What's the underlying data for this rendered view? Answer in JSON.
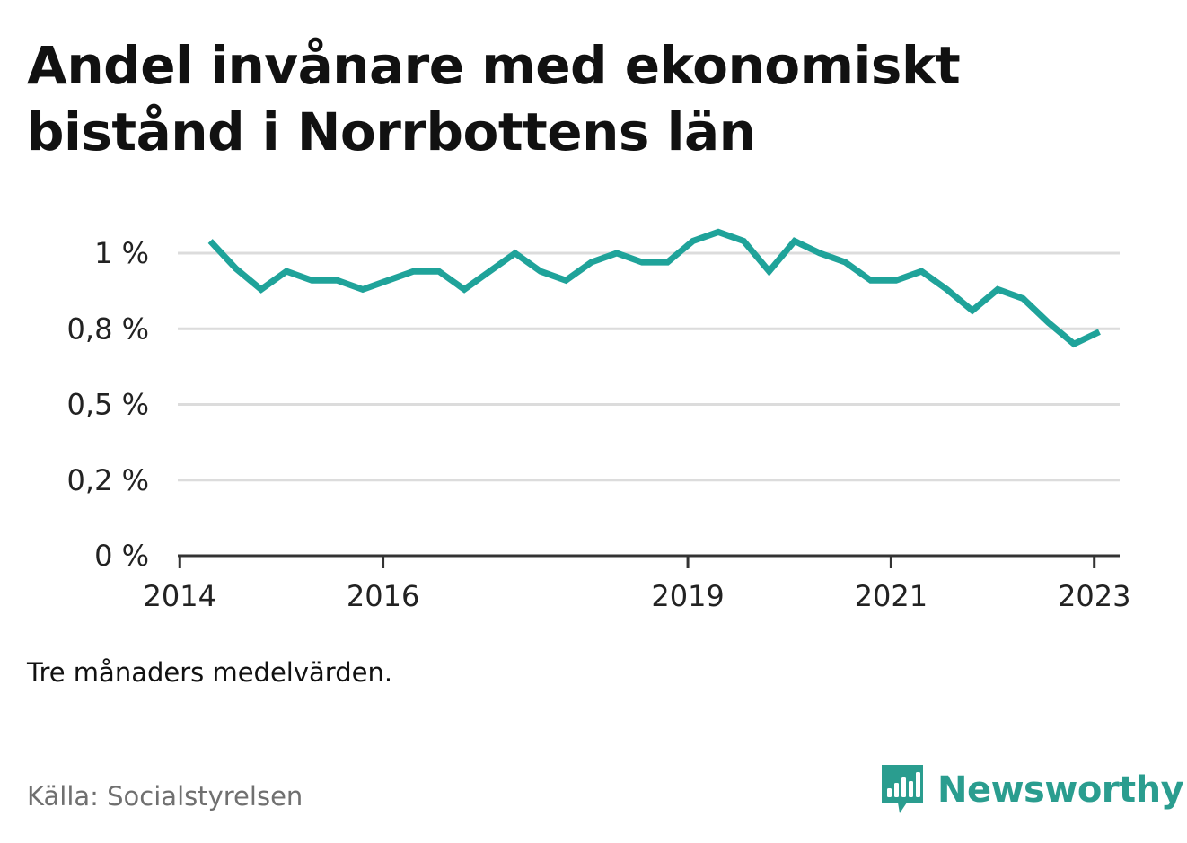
{
  "title": "Andel invånare med ekonomiskt bistånd i Norrbottens län",
  "note": "Tre månaders medelvärden.",
  "source": "Källa: Socialstyrelsen",
  "brand": {
    "name": "Newsworthy",
    "icon": "bar-chart-speech-bubble-icon",
    "color": "#2a9d8f"
  },
  "chart_data": {
    "type": "line",
    "title": "Andel invånare med ekonomiskt bistånd i Norrbottens län",
    "xlabel": "",
    "ylabel": "",
    "x_range": [
      2013.98,
      2023.25
    ],
    "ylim": [
      0,
      1.0
    ],
    "y_ticks": [
      0,
      0.25,
      0.5,
      0.75,
      1.0
    ],
    "y_tick_labels": [
      "0 %",
      "0,2 %",
      "0,5 %",
      "0,8 %",
      "1 %"
    ],
    "x_ticks": [
      2014,
      2016,
      2019,
      2021,
      2023
    ],
    "x_tick_labels": [
      "2014",
      "2016",
      "2019",
      "2021",
      "2023"
    ],
    "grid": true,
    "line_color": "#1fa39a",
    "series": [
      {
        "name": "",
        "x": [
          2014.3,
          2014.55,
          2014.8,
          2015.05,
          2015.3,
          2015.55,
          2015.8,
          2016.05,
          2016.3,
          2016.55,
          2016.8,
          2017.05,
          2017.3,
          2017.55,
          2017.8,
          2018.05,
          2018.3,
          2018.55,
          2018.8,
          2019.05,
          2019.3,
          2019.55,
          2019.8,
          2020.05,
          2020.3,
          2020.55,
          2020.8,
          2021.05,
          2021.3,
          2021.55,
          2021.8,
          2022.05,
          2022.3,
          2022.55,
          2022.8,
          2023.05
        ],
        "values": [
          1.04,
          0.95,
          0.88,
          0.94,
          0.91,
          0.91,
          0.88,
          0.91,
          0.94,
          0.94,
          0.88,
          0.94,
          1.0,
          0.94,
          0.91,
          0.97,
          1.0,
          0.97,
          0.97,
          1.04,
          1.07,
          1.04,
          0.94,
          1.04,
          1.0,
          0.97,
          0.91,
          0.91,
          0.94,
          0.88,
          0.81,
          0.88,
          0.85,
          0.77,
          0.7,
          0.74
        ]
      }
    ]
  }
}
